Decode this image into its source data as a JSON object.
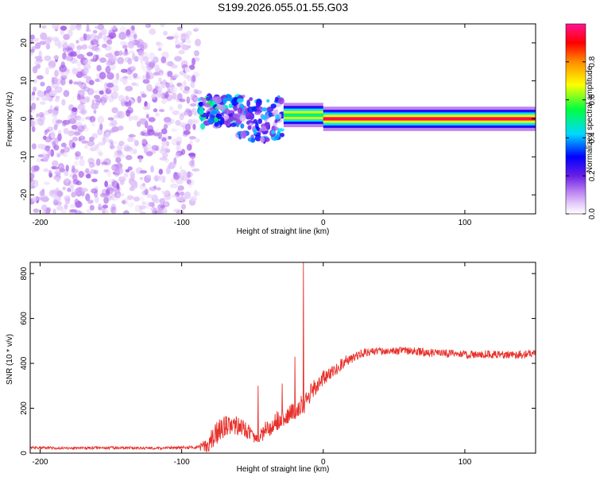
{
  "figure_title": "S199.2026.055.01.55.G03",
  "chart_data": [
    {
      "type": "heatmap",
      "title": "S199.2026.055.01.55.G03",
      "xlabel": "Height of straight line (km)",
      "ylabel": "Frequency (Hz)",
      "xlim": [
        -207,
        150
      ],
      "ylim": [
        -25,
        25
      ],
      "xticks": [
        -200,
        -100,
        0,
        100
      ],
      "yticks": [
        -20,
        -10,
        0,
        10,
        20
      ],
      "colorbar": {
        "label": "Normalized spectral amplitude",
        "range": [
          0.0,
          1.0
        ],
        "ticks": [
          0.0,
          0.2,
          0.4,
          0.6,
          0.8
        ],
        "colormap": [
          "#ffffff",
          "#d8b4f8",
          "#8a2be2",
          "#0000ff",
          "#00e5ff",
          "#00ff00",
          "#ffff00",
          "#ff8c00",
          "#ff0000",
          "#ff1493"
        ]
      },
      "regions": [
        {
          "x_range": [
            -207,
            -88
          ],
          "f_range": [
            -25,
            25
          ],
          "amplitude": 0.1,
          "pattern": "noise"
        },
        {
          "x_range": [
            -88,
            -60
          ],
          "f_range": [
            -2,
            6
          ],
          "amplitude": 0.35,
          "pattern": "clustered"
        },
        {
          "x_range": [
            -60,
            -28
          ],
          "f_range": [
            -6,
            6
          ],
          "amplitude": 0.3,
          "pattern": "clustered"
        },
        {
          "x_range": [
            -28,
            0
          ],
          "f_range": [
            -1,
            3
          ],
          "amplitude": 0.5,
          "pattern": "tone"
        },
        {
          "x_range": [
            0,
            150
          ],
          "f_range": [
            -0.5,
            0.5
          ],
          "amplitude": 0.95,
          "pattern": "tone"
        }
      ]
    },
    {
      "type": "line",
      "xlabel": "Height of straight line (km)",
      "ylabel": "SNR (10 * v/v)",
      "xlim": [
        -207,
        150
      ],
      "ylim": [
        0,
        850
      ],
      "xticks": [
        -200,
        -100,
        0,
        100
      ],
      "yticks": [
        0,
        200,
        400,
        600,
        800
      ],
      "series": [
        {
          "name": "SNR",
          "color": "#e8302a",
          "x": [
            -207,
            -180,
            -150,
            -120,
            -100,
            -90,
            -82,
            -78,
            -72,
            -66,
            -60,
            -55,
            -50,
            -45,
            -40,
            -35,
            -30,
            -25,
            -20,
            -15,
            -14,
            -13,
            -10,
            -5,
            0,
            5,
            10,
            15,
            20,
            25,
            30,
            40,
            50,
            60,
            70,
            80,
            90,
            100,
            110,
            120,
            130,
            140,
            150
          ],
          "values": [
            25,
            22,
            24,
            22,
            25,
            25,
            30,
            70,
            110,
            130,
            120,
            110,
            80,
            70,
            110,
            130,
            160,
            170,
            190,
            220,
            850,
            230,
            260,
            300,
            330,
            350,
            380,
            410,
            420,
            440,
            450,
            455,
            455,
            455,
            450,
            445,
            445,
            440,
            440,
            440,
            440,
            440,
            440
          ],
          "noise": [
            6,
            6,
            6,
            6,
            6,
            8,
            30,
            50,
            50,
            45,
            40,
            40,
            30,
            30,
            40,
            45,
            55,
            40,
            40,
            40,
            0,
            40,
            40,
            40,
            40,
            35,
            30,
            25,
            20,
            20,
            18,
            18,
            18,
            18,
            18,
            18,
            18,
            18,
            18,
            18,
            18,
            18,
            18
          ],
          "spikes": [
            {
              "x": -14,
              "y": 850
            },
            {
              "x": -20,
              "y": 430
            },
            {
              "x": -29,
              "y": 310
            },
            {
              "x": -46,
              "y": 300
            }
          ]
        }
      ]
    }
  ]
}
